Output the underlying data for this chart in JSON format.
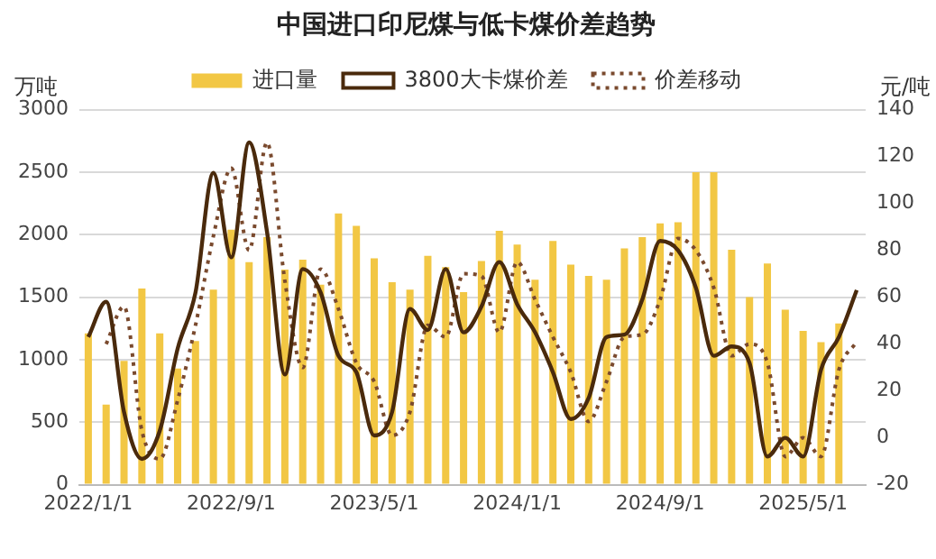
{
  "chart_data": {
    "type": "bar",
    "title": "中国进口印尼煤与低卡煤价差趋势",
    "ylabel": "万吨",
    "y2label": "元/吨",
    "categories": [
      "2022/1/1",
      null,
      null,
      null,
      null,
      null,
      null,
      null,
      "2022/9/1",
      null,
      null,
      null,
      null,
      null,
      null,
      null,
      "2023/5/1",
      null,
      null,
      null,
      null,
      null,
      null,
      null,
      "2024/1/1",
      null,
      null,
      null,
      null,
      null,
      null,
      null,
      "2024/9/1",
      null,
      null,
      null,
      null,
      null,
      null,
      null,
      "2025/5/1",
      null,
      null,
      null
    ],
    "series": [
      {
        "name": "进口量",
        "color": "#f2c744",
        "values": [
          1210,
          640,
          990,
          1570,
          1210,
          930,
          1150,
          1560,
          2040,
          1780,
          1980,
          1720,
          1800,
          1600,
          2170,
          2070,
          1810,
          1620,
          1560,
          1830,
          1740,
          1540,
          1790,
          2030,
          1920,
          1640,
          1950,
          1760,
          1670,
          1640,
          1890,
          1980,
          2090,
          2100,
          2500,
          2500,
          1880,
          1500,
          1770,
          1400,
          1230,
          1140,
          1290,
          null
        ]
      },
      {
        "name": "3800大卡煤价差",
        "type": "line",
        "axis": "y2",
        "color": "#4a2a0c",
        "line_style": "solid",
        "values": [
          43,
          58,
          11,
          -9,
          3,
          38,
          62,
          113,
          77,
          126,
          88,
          27,
          72,
          62,
          35,
          28,
          1,
          11,
          55,
          46,
          72,
          45,
          56,
          75,
          57,
          45,
          28,
          8,
          17,
          43,
          44,
          59,
          84,
          80,
          64,
          35,
          39,
          32,
          -8,
          0,
          -8,
          29,
          43,
          63
        ]
      },
      {
        "name": "价差移动",
        "type": "line",
        "axis": "y2",
        "color": "#7a4a2e",
        "line_style": "dotted",
        "values": [
          null,
          40,
          56,
          3,
          -9,
          16,
          48,
          86,
          115,
          80,
          126,
          67,
          30,
          72,
          55,
          32,
          24,
          1,
          11,
          48,
          43,
          70,
          69,
          45,
          75,
          59,
          43,
          28,
          7,
          24,
          43,
          44,
          59,
          85,
          80,
          64,
          35,
          40,
          32,
          -8,
          0,
          -8,
          29,
          41
        ]
      }
    ],
    "ylim": [
      0,
      3000
    ],
    "yticks": [
      0,
      500,
      1000,
      1500,
      2000,
      2500,
      3000
    ],
    "y2lim": [
      -20,
      140
    ],
    "y2ticks": [
      -20,
      0,
      20,
      40,
      60,
      80,
      100,
      120,
      140
    ],
    "grid": "y",
    "legend": "top",
    "marker": "none"
  }
}
